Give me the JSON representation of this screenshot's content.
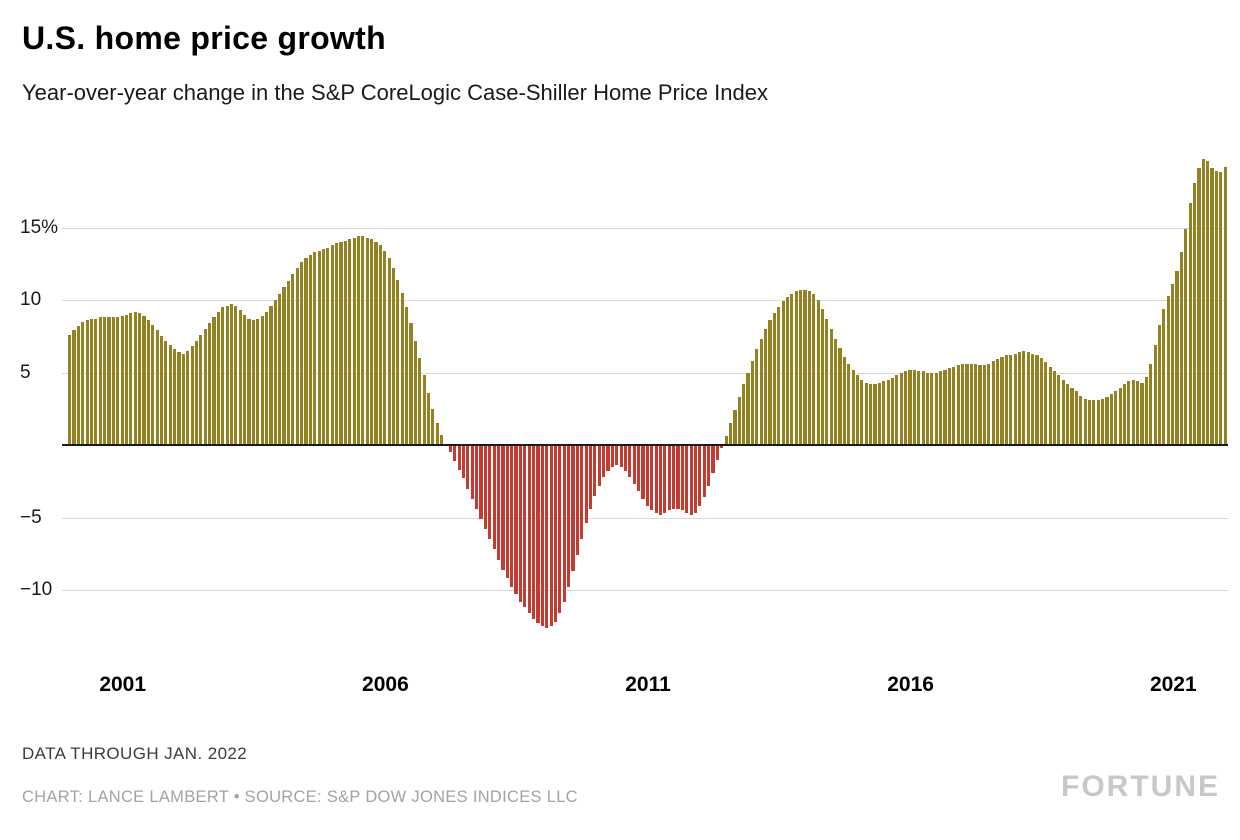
{
  "header": {
    "title": "U.S. home price growth",
    "subtitle": "Year-over-year change in the S&P CoreLogic Case-Shiller Home Price Index"
  },
  "footer": {
    "note": "DATA THROUGH JAN. 2022",
    "credit": "CHART: LANCE LAMBERT • SOURCE: S&P DOW JONES INDICES LLC",
    "logo": "FORTUNE"
  },
  "chart_data": {
    "type": "bar",
    "title": "U.S. home price growth",
    "subtitle": "Year-over-year change in the S&P CoreLogic Case-Shiller Home Price Index",
    "unit": "percent year-over-year",
    "frequency": "monthly",
    "start": "2000-01",
    "end": "2022-01",
    "grid": "horizontal",
    "legend": "none",
    "positive_color": "#948122",
    "negative_color": "#c53b30",
    "ylim": [
      -14,
      21
    ],
    "y_ticks": [
      15,
      10,
      5,
      -5,
      -10
    ],
    "y_tick_labels": [
      "15%",
      "10",
      "5",
      "−5",
      "−10"
    ],
    "x_tick_years": [
      2001,
      2006,
      2011,
      2016,
      2021
    ],
    "x_tick_labels": [
      "2001",
      "2006",
      "2011",
      "2016",
      "2021"
    ],
    "values": [
      7.6,
      7.9,
      8.2,
      8.5,
      8.6,
      8.7,
      8.7,
      8.8,
      8.8,
      8.8,
      8.8,
      8.8,
      8.9,
      9.0,
      9.1,
      9.2,
      9.1,
      8.9,
      8.6,
      8.3,
      7.9,
      7.5,
      7.2,
      6.9,
      6.6,
      6.4,
      6.3,
      6.5,
      6.8,
      7.2,
      7.6,
      8.0,
      8.4,
      8.8,
      9.2,
      9.5,
      9.6,
      9.7,
      9.6,
      9.3,
      9.0,
      8.7,
      8.6,
      8.7,
      8.9,
      9.2,
      9.6,
      10.0,
      10.4,
      10.9,
      11.3,
      11.8,
      12.2,
      12.6,
      12.9,
      13.1,
      13.3,
      13.4,
      13.5,
      13.6,
      13.8,
      13.9,
      14.0,
      14.1,
      14.2,
      14.3,
      14.4,
      14.4,
      14.3,
      14.2,
      14.0,
      13.8,
      13.4,
      12.9,
      12.2,
      11.4,
      10.5,
      9.5,
      8.4,
      7.2,
      6.0,
      4.8,
      3.6,
      2.5,
      1.5,
      0.7,
      0.1,
      -0.5,
      -1.1,
      -1.7,
      -2.3,
      -3.0,
      -3.7,
      -4.4,
      -5.1,
      -5.8,
      -6.5,
      -7.2,
      -7.9,
      -8.6,
      -9.2,
      -9.8,
      -10.3,
      -10.8,
      -11.2,
      -11.6,
      -12.0,
      -12.3,
      -12.5,
      -12.6,
      -12.5,
      -12.2,
      -11.6,
      -10.8,
      -9.8,
      -8.7,
      -7.6,
      -6.5,
      -5.4,
      -4.4,
      -3.5,
      -2.8,
      -2.2,
      -1.8,
      -1.5,
      -1.4,
      -1.5,
      -1.8,
      -2.2,
      -2.7,
      -3.2,
      -3.7,
      -4.2,
      -4.5,
      -4.7,
      -4.8,
      -4.7,
      -4.5,
      -4.4,
      -4.4,
      -4.5,
      -4.7,
      -4.8,
      -4.7,
      -4.2,
      -3.6,
      -2.8,
      -1.9,
      -1.0,
      -0.2,
      0.6,
      1.5,
      2.4,
      3.3,
      4.2,
      5.0,
      5.8,
      6.6,
      7.3,
      8.0,
      8.6,
      9.1,
      9.5,
      9.9,
      10.2,
      10.4,
      10.6,
      10.7,
      10.7,
      10.6,
      10.4,
      10.0,
      9.4,
      8.7,
      8.0,
      7.3,
      6.7,
      6.1,
      5.6,
      5.2,
      4.8,
      4.5,
      4.3,
      4.2,
      4.2,
      4.3,
      4.4,
      4.5,
      4.6,
      4.8,
      5.0,
      5.1,
      5.2,
      5.2,
      5.1,
      5.1,
      5.0,
      5.0,
      5.0,
      5.1,
      5.2,
      5.3,
      5.4,
      5.5,
      5.6,
      5.6,
      5.6,
      5.6,
      5.5,
      5.5,
      5.6,
      5.8,
      5.9,
      6.1,
      6.2,
      6.2,
      6.3,
      6.4,
      6.5,
      6.4,
      6.3,
      6.2,
      6.0,
      5.7,
      5.4,
      5.1,
      4.8,
      4.5,
      4.2,
      3.9,
      3.7,
      3.4,
      3.2,
      3.1,
      3.1,
      3.1,
      3.2,
      3.3,
      3.5,
      3.7,
      3.9,
      4.2,
      4.4,
      4.5,
      4.4,
      4.3,
      4.7,
      5.6,
      6.9,
      8.3,
      9.4,
      10.3,
      11.1,
      12.0,
      13.3,
      14.9,
      16.7,
      18.1,
      19.1,
      19.7,
      19.6,
      19.1,
      18.9,
      18.8,
      19.2
    ]
  }
}
